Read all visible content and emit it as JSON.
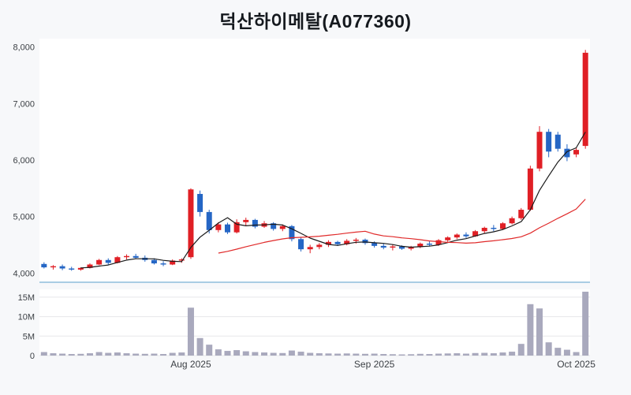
{
  "chart": {
    "title": "덕산하이메탈(A077360)"
  },
  "chart_data": {
    "type": "candlestick",
    "subpanels": [
      "price",
      "volume"
    ],
    "title": "덕산하이메탈(A077360)",
    "price_axis": {
      "ticks": [
        4000,
        5000,
        6000,
        7000,
        8000
      ],
      "labels": [
        "4,000",
        "5,000",
        "6,000",
        "7,000",
        "8,000"
      ],
      "range": [
        3850,
        8150
      ]
    },
    "volume_axis": {
      "unit": "millions",
      "ticks": [
        0,
        5,
        10,
        15
      ],
      "labels": [
        "0",
        "5M",
        "10M",
        "15M"
      ],
      "range": [
        0,
        17
      ]
    },
    "x_ticks": [
      {
        "label": "Aug 2025",
        "index": 16
      },
      {
        "label": "Sep 2025",
        "index": 36
      },
      {
        "label": "Oct 2025",
        "index": 58
      }
    ],
    "series": {
      "open": [
        4160,
        4100,
        4120,
        4080,
        4060,
        4090,
        4150,
        4230,
        4180,
        4280,
        4300,
        4270,
        4230,
        4170,
        4150,
        4220,
        4280,
        5400,
        5080,
        4760,
        4860,
        4720,
        4900,
        4940,
        4820,
        4880,
        4780,
        4830,
        4600,
        4420,
        4460,
        4500,
        4550,
        4510,
        4570,
        4590,
        4530,
        4480,
        4450,
        4470,
        4430,
        4460,
        4520,
        4500,
        4580,
        4630,
        4680,
        4650,
        4740,
        4800,
        4780,
        4880,
        4970,
        5120,
        5850,
        6500,
        6450,
        6200,
        6100,
        6250
      ],
      "high": [
        4190,
        4140,
        4150,
        4110,
        4100,
        4170,
        4250,
        4260,
        4300,
        4330,
        4340,
        4310,
        4260,
        4210,
        4240,
        4260,
        5500,
        5460,
        5120,
        4900,
        4890,
        4950,
        4980,
        4960,
        4920,
        4900,
        4860,
        4850,
        4640,
        4500,
        4530,
        4580,
        4570,
        4600,
        4620,
        4610,
        4560,
        4520,
        4500,
        4490,
        4480,
        4540,
        4560,
        4600,
        4650,
        4700,
        4720,
        4760,
        4820,
        4850,
        4900,
        5000,
        5150,
        5900,
        6600,
        6550,
        6500,
        6280,
        6220,
        7950
      ],
      "low": [
        4080,
        4060,
        4050,
        4040,
        4040,
        4080,
        4140,
        4150,
        4170,
        4240,
        4250,
        4200,
        4150,
        4120,
        4140,
        4180,
        4250,
        5000,
        4700,
        4720,
        4690,
        4700,
        4830,
        4790,
        4800,
        4750,
        4740,
        4560,
        4380,
        4350,
        4420,
        4460,
        4480,
        4490,
        4520,
        4500,
        4450,
        4420,
        4400,
        4410,
        4400,
        4440,
        4470,
        4480,
        4550,
        4600,
        4620,
        4640,
        4700,
        4740,
        4760,
        4860,
        4940,
        5100,
        5800,
        6050,
        6150,
        5980,
        6050,
        6200
      ],
      "close": [
        4100,
        4120,
        4080,
        4060,
        4090,
        4150,
        4230,
        4180,
        4280,
        4300,
        4270,
        4230,
        4170,
        4150,
        4220,
        4240,
        5480,
        5080,
        4760,
        4860,
        4720,
        4900,
        4940,
        4820,
        4880,
        4780,
        4830,
        4600,
        4420,
        4460,
        4500,
        4550,
        4510,
        4570,
        4590,
        4530,
        4480,
        4450,
        4470,
        4430,
        4460,
        4520,
        4500,
        4580,
        4630,
        4680,
        4650,
        4740,
        4800,
        4780,
        4880,
        4970,
        5120,
        5850,
        6500,
        6150,
        6200,
        6050,
        6180,
        7900
      ],
      "volume": [
        0.9,
        0.6,
        0.5,
        0.4,
        0.45,
        0.6,
        0.9,
        0.7,
        0.8,
        0.6,
        0.5,
        0.45,
        0.5,
        0.4,
        0.7,
        0.8,
        12.3,
        4.5,
        2.8,
        1.6,
        1.2,
        1.4,
        1.1,
        0.9,
        0.8,
        0.7,
        0.65,
        1.3,
        1.0,
        0.7,
        0.6,
        0.55,
        0.5,
        0.55,
        0.5,
        0.45,
        0.5,
        0.4,
        0.35,
        0.3,
        0.35,
        0.45,
        0.4,
        0.5,
        0.55,
        0.6,
        0.5,
        0.65,
        0.7,
        0.6,
        0.8,
        1.0,
        3.0,
        13.2,
        12.1,
        3.4,
        2.0,
        1.5,
        0.9,
        16.4
      ]
    },
    "overlays": [
      {
        "name": "MA5",
        "window": 5,
        "color": "#1a1a1a"
      },
      {
        "name": "MA20",
        "window": 20,
        "color": "#e02a2a"
      }
    ],
    "colors": {
      "up": "#e01f25",
      "down": "#2566c5",
      "volume": "#a9a9bd",
      "axis_line": "#a9cce3",
      "grid": "#e7e7ea",
      "plot_bg": "#ffffff"
    },
    "legend_position": "none",
    "grid": "volume-panel-only"
  }
}
